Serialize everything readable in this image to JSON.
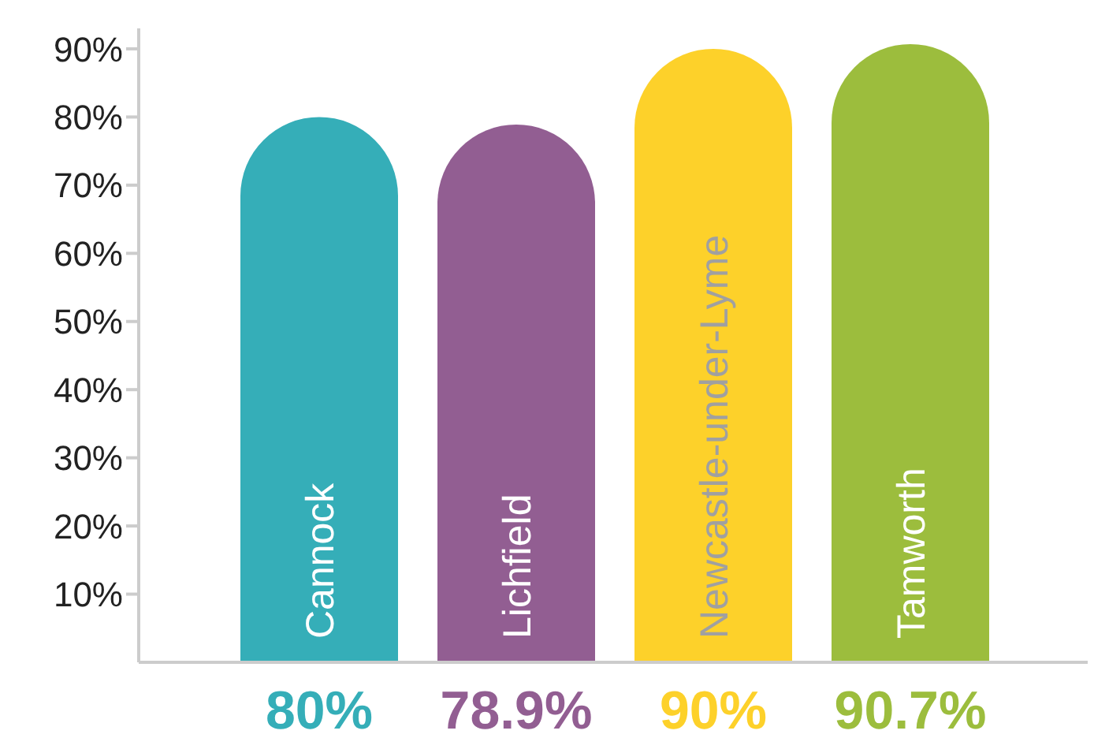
{
  "chart_data": {
    "type": "bar",
    "categories": [
      "Cannock",
      "Lichfield",
      "Newcastle-under-Lyme",
      "Tamworth"
    ],
    "values": [
      80,
      78.9,
      90,
      90.7
    ],
    "colors": [
      "#35aeb8",
      "#925e92",
      "#fdd12a",
      "#9cbd3d"
    ],
    "value_labels": [
      "80%",
      "78.9%",
      "90%",
      "90.7%"
    ],
    "ylim": [
      0,
      93
    ],
    "yticks": [
      {
        "value": 10,
        "label": "10%"
      },
      {
        "value": 20,
        "label": "20%"
      },
      {
        "value": 30,
        "label": "30%"
      },
      {
        "value": 40,
        "label": "40%"
      },
      {
        "value": 50,
        "label": "50%"
      },
      {
        "value": 60,
        "label": "60%"
      },
      {
        "value": 70,
        "label": "70%"
      },
      {
        "value": 80,
        "label": "80%"
      },
      {
        "value": 90,
        "label": "90%"
      }
    ],
    "grid": false,
    "legend": false
  }
}
